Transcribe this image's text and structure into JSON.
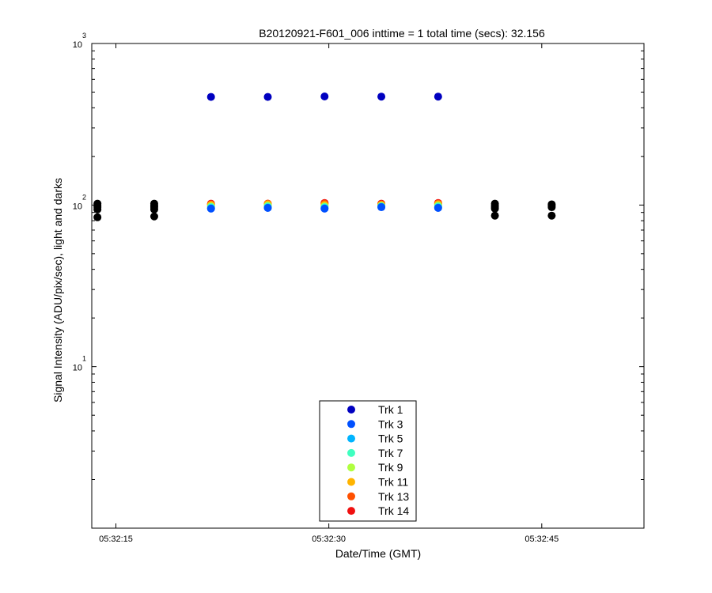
{
  "chart_data": {
    "type": "scatter",
    "title": "B20120921-F601_006 inttime = 1 total time (secs): 32.156",
    "xlabel": "Date/Time (GMT)",
    "ylabel": "Signal Intensity (ADU/pix/sec), light and darks",
    "y_scale": "log",
    "ylim": [
      1,
      1000
    ],
    "y_ticks": [
      {
        "value": 10,
        "base": "10",
        "exp": "1"
      },
      {
        "value": 100,
        "base": "10",
        "exp": "2"
      },
      {
        "value": 1000,
        "base": "10",
        "exp": "3"
      }
    ],
    "xlim": [
      "05:32:13.3",
      "05:32:52.2"
    ],
    "x_ticks": [
      "05:32:15",
      "05:32:30",
      "05:32:45"
    ],
    "grid": false,
    "legend_position": "bottom-center",
    "series": [
      {
        "name": "Trk 1",
        "color": "#0000c0",
        "x": [
          "05:32:21.7",
          "05:32:25.7",
          "05:32:29.7",
          "05:32:33.7",
          "05:32:37.7"
        ],
        "y": [
          467,
          467,
          470,
          469,
          469
        ]
      },
      {
        "name": "Trk 3",
        "color": "#0050ff",
        "x": [
          "05:32:21.7",
          "05:32:25.7",
          "05:32:29.7",
          "05:32:33.7",
          "05:32:37.7"
        ],
        "y": [
          95,
          96,
          95,
          97,
          96
        ]
      },
      {
        "name": "Trk 5",
        "color": "#00b4ff",
        "x": [
          "05:32:21.7",
          "05:32:25.7",
          "05:32:29.7",
          "05:32:33.7",
          "05:32:37.7"
        ],
        "y": [
          95.5,
          96.5,
          95.5,
          97.5,
          96.5
        ]
      },
      {
        "name": "Trk 7",
        "color": "#40ffc0",
        "x": [
          "05:32:21.7",
          "05:32:25.7",
          "05:32:29.7",
          "05:32:33.7",
          "05:32:37.7"
        ],
        "y": [
          97,
          98,
          97,
          98,
          98
        ]
      },
      {
        "name": "Trk 9",
        "color": "#b0ff40",
        "x": [
          "05:32:21.7",
          "05:32:25.7",
          "05:32:29.7",
          "05:32:33.7",
          "05:32:37.7"
        ],
        "y": [
          98,
          99,
          98,
          99,
          99
        ]
      },
      {
        "name": "Trk 11",
        "color": "#ffb400",
        "x": [
          "05:32:21.7",
          "05:32:25.7",
          "05:32:29.7",
          "05:32:33.7",
          "05:32:37.7"
        ],
        "y": [
          100,
          101,
          100,
          100,
          101
        ]
      },
      {
        "name": "Trk 13",
        "color": "#ff5000",
        "x": [
          "05:32:21.7",
          "05:32:25.7",
          "05:32:29.7",
          "05:32:33.7",
          "05:32:37.7"
        ],
        "y": [
          101,
          102,
          102,
          101,
          102
        ]
      },
      {
        "name": "Trk 14",
        "color": "#f01010",
        "x": [
          "05:32:21.7",
          "05:32:25.7",
          "05:32:29.7",
          "05:32:33.7",
          "05:32:37.7"
        ],
        "y": [
          102,
          102,
          103,
          102,
          103
        ]
      },
      {
        "color": "#000000",
        "x": [
          "05:32:13.7",
          "05:32:13.7",
          "05:32:13.7",
          "05:32:13.7",
          "05:32:13.7",
          "05:32:17.7",
          "05:32:17.7",
          "05:32:17.7",
          "05:32:17.7",
          "05:32:17.7",
          "05:32:41.7",
          "05:32:41.7",
          "05:32:41.7",
          "05:32:41.7",
          "05:32:41.7",
          "05:32:45.7",
          "05:32:45.7",
          "05:32:45.7",
          "05:32:45.7"
        ],
        "y": [
          102,
          99,
          97,
          94,
          84,
          102,
          99,
          97,
          94,
          85,
          102,
          99,
          97,
          95,
          86,
          101,
          99,
          97,
          86
        ]
      }
    ]
  }
}
